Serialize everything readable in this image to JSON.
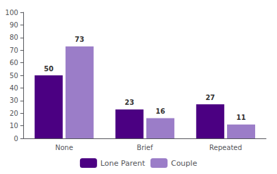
{
  "chart_data": {
    "type": "bar",
    "categories": [
      "None",
      "Brief",
      "Repeated"
    ],
    "series": [
      {
        "name": "Lone Parent",
        "color": "#4B0082",
        "values": [
          50,
          23,
          27
        ]
      },
      {
        "name": "Couple",
        "color": "#9B7DC8",
        "values": [
          73,
          16,
          11
        ]
      }
    ],
    "ylim": [
      0,
      100
    ],
    "yticks": [
      0,
      10,
      20,
      30,
      40,
      50,
      60,
      70,
      80,
      90,
      100
    ],
    "grid": false,
    "legend": "bottom",
    "data_labels": true
  }
}
